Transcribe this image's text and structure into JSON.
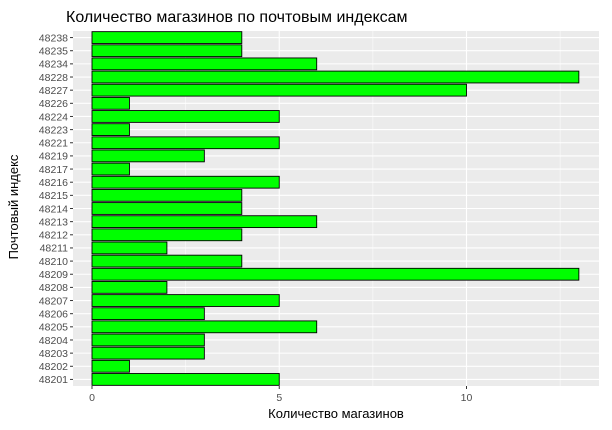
{
  "chart_data": {
    "type": "bar",
    "orientation": "horizontal",
    "title": "Количество магазинов по почтовым индексам",
    "xlabel": "Количество магазинов",
    "ylabel": "Почтовый индекс",
    "xlim": [
      0,
      13.6
    ],
    "xticks": [
      "0",
      "5",
      "10"
    ],
    "grid": true,
    "legend": "none",
    "colors": {
      "bar_fill": "#00ff00",
      "bar_stroke": "#000000",
      "panel_bg": "#ebebeb",
      "grid_major": "#ffffff"
    },
    "categories": [
      "48201",
      "48202",
      "48203",
      "48204",
      "48205",
      "48206",
      "48207",
      "48208",
      "48209",
      "48210",
      "48211",
      "48212",
      "48213",
      "48214",
      "48215",
      "48216",
      "48217",
      "48219",
      "48221",
      "48223",
      "48224",
      "48226",
      "48227",
      "48228",
      "48234",
      "48235",
      "48238"
    ],
    "values": [
      5,
      1,
      3,
      3,
      6,
      3,
      5,
      2,
      13,
      4,
      2,
      4,
      6,
      4,
      4,
      5,
      1,
      3,
      5,
      1,
      5,
      1,
      10,
      13,
      6,
      4,
      4
    ]
  }
}
